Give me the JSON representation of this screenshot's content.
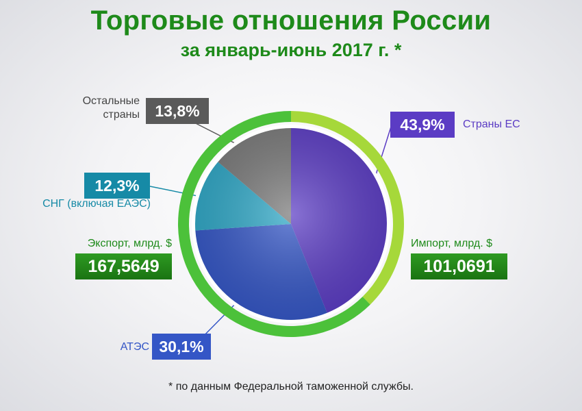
{
  "header": {
    "title": "Торговые отношения России",
    "subtitle": "за январь-июнь 2017 г. *"
  },
  "chart_data": {
    "type": "pie",
    "slices": [
      {
        "label": "Страны ЕС",
        "value": 43.9,
        "display": "43,9%",
        "color": "#5b3cc4"
      },
      {
        "label": "АТЭС",
        "value": 30.1,
        "display": "30,1%",
        "color": "#3456c6"
      },
      {
        "label": "СНГ (включая ЕАЭС)",
        "value": 12.3,
        "display": "12,3%",
        "color": "#2ea7c6"
      },
      {
        "label": "Остальные страны",
        "value": 13.8,
        "display": "13,8%",
        "color": "#7a7a7a"
      }
    ],
    "trade": {
      "export_label": "Экспорт, млрд. $",
      "export_value": 167.5649,
      "export_display": "167,5649",
      "import_label": "Импорт, млрд. $",
      "import_value": 101.0691,
      "import_display": "101,0691"
    }
  },
  "labels": {
    "other_line1": "Остальные",
    "other_line2": "страны"
  },
  "footnote": "* по данным Федеральной таможенной службы.",
  "colors": {
    "title_green": "#1e8a1a",
    "ring_export": "#4cc13a",
    "ring_import": "#a6d83a"
  }
}
